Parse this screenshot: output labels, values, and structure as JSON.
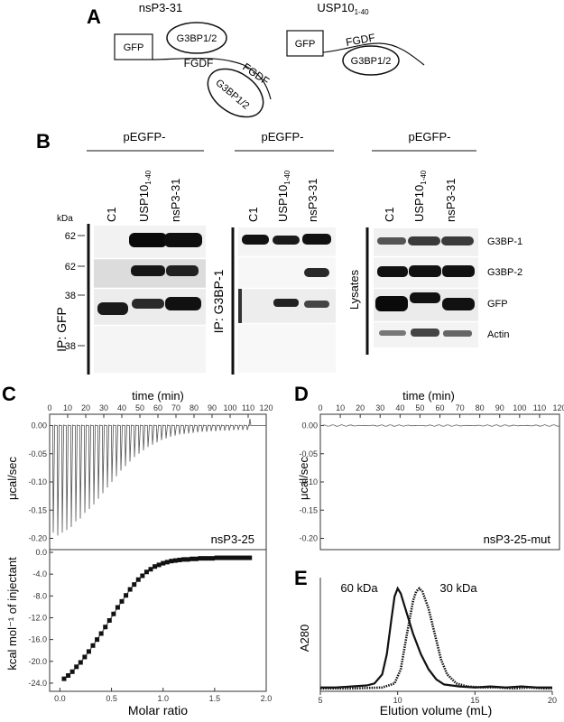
{
  "panels": {
    "A": {
      "letter": "A",
      "diagram_left": {
        "title": "nsP3-31",
        "gfp": "GFP",
        "g3bp_top": "G3BP1/2",
        "g3bp_bottom": "G3BP1/2",
        "motif1": "FGDF",
        "motif2": "FGDF"
      },
      "diagram_right": {
        "title": "USP10",
        "title_sub": "1-40",
        "gfp": "GFP",
        "g3bp": "G3BP1/2",
        "motif": "FGDF"
      }
    },
    "B": {
      "letter": "B",
      "kda": "kDa",
      "groups": [
        {
          "header": "pEGFP-",
          "lanes": [
            "C1",
            "USP10",
            "nsP3-31"
          ]
        },
        {
          "header": "pEGFP-",
          "lanes": [
            "C1",
            "USP10",
            "nsP3-31"
          ]
        },
        {
          "header": "pEGFP-",
          "lanes": [
            "C1",
            "USP10",
            "nsP3-31"
          ]
        }
      ],
      "lane_sub": "1-40",
      "ip_gfp": "IP: GFP",
      "ip_g3bp1": "IP: G3BP-1",
      "lysates": "Lysates",
      "mw_markers": [
        "62",
        "62",
        "38",
        "38"
      ],
      "row_labels": [
        "G3BP-1",
        "G3BP-2",
        "GFP",
        "Actin"
      ]
    },
    "C": {
      "letter": "C",
      "top_xlabel": "time (min)",
      "top_ylabel": "μcal/sec",
      "annotation": "nsP3-25",
      "time_ticks": [
        "0",
        "10",
        "20",
        "30",
        "40",
        "50",
        "60",
        "70",
        "80",
        "90",
        "100",
        "110",
        "120"
      ],
      "y_ticks_top": [
        "0.00",
        "-0.05",
        "-0.10",
        "-0.15",
        "-0.20"
      ],
      "bottom_ylabel": "kcal mol⁻¹ of injectant",
      "bottom_xlabel": "Molar ratio",
      "y_ticks_bottom": [
        "0.0",
        "-4.0",
        "-8.0",
        "-12.0",
        "-16.0",
        "-20.0",
        "-24.0"
      ],
      "x_ticks_bottom": [
        "0.0",
        "0.5",
        "1.0",
        "1.5",
        "2.0"
      ]
    },
    "D": {
      "letter": "D",
      "top_xlabel": "time (min)",
      "top_ylabel": "μcal/sec",
      "annotation": "nsP3-25-mut",
      "time_ticks": [
        "0",
        "10",
        "20",
        "30",
        "40",
        "50",
        "60",
        "70",
        "80",
        "90",
        "100",
        "110",
        "120"
      ],
      "y_ticks_top": [
        "0.00",
        "-0.05",
        "-0.10",
        "-0.15",
        "-0.20"
      ]
    },
    "E": {
      "letter": "E",
      "ylabel": "A280",
      "xlabel": "Elution volume (mL)",
      "peak1": "60 kDa",
      "peak2": "30 kDa",
      "x_ticks": [
        "5",
        "10",
        "15",
        "20"
      ]
    }
  },
  "chart_data": [
    {
      "type": "line",
      "title": "",
      "xlabel": "time (min)",
      "ylabel": "μcal/sec",
      "xlim": [
        0,
        120
      ],
      "ylim": [
        -0.22,
        0.02
      ],
      "injection_peaks": {
        "x": [
          2,
          4.5,
          7,
          9.5,
          12,
          14.5,
          17,
          19.5,
          22,
          24.5,
          27,
          29.5,
          32,
          34.5,
          37,
          39.5,
          42,
          44.5,
          47,
          49.5,
          52,
          54.5,
          57,
          59.5,
          62,
          64.5,
          67,
          69.5,
          72,
          74.5,
          77,
          79.5,
          82,
          84.5,
          87,
          89.5,
          92,
          94.5,
          97,
          99.5,
          102,
          104.5,
          107,
          109.5
        ],
        "y": [
          -0.19,
          -0.195,
          -0.19,
          -0.185,
          -0.18,
          -0.17,
          -0.165,
          -0.155,
          -0.148,
          -0.14,
          -0.13,
          -0.12,
          -0.11,
          -0.1,
          -0.09,
          -0.08,
          -0.072,
          -0.064,
          -0.056,
          -0.05,
          -0.044,
          -0.038,
          -0.034,
          -0.03,
          -0.026,
          -0.023,
          -0.02,
          -0.018,
          -0.016,
          -0.015,
          -0.014,
          -0.013,
          -0.012,
          -0.011,
          -0.011,
          -0.01,
          -0.01,
          -0.009,
          -0.009,
          -0.009,
          -0.008,
          -0.008,
          -0.008,
          -0.008
        ]
      },
      "artifact": {
        "x": 111,
        "y": 0.012
      }
    },
    {
      "type": "scatter",
      "title": "",
      "xlabel": "Molar ratio",
      "ylabel": "kcal mol⁻¹ of injectant",
      "xlim": [
        -0.1,
        2.0
      ],
      "ylim": [
        -25.5,
        0.5
      ],
      "points": {
        "x": [
          0.04,
          0.08,
          0.12,
          0.16,
          0.2,
          0.24,
          0.28,
          0.32,
          0.36,
          0.4,
          0.44,
          0.48,
          0.52,
          0.56,
          0.6,
          0.64,
          0.68,
          0.72,
          0.76,
          0.8,
          0.84,
          0.88,
          0.92,
          0.96,
          1.0,
          1.04,
          1.08,
          1.12,
          1.16,
          1.2,
          1.24,
          1.28,
          1.32,
          1.36,
          1.4,
          1.44,
          1.48,
          1.52,
          1.56,
          1.6,
          1.64,
          1.68,
          1.72,
          1.76,
          1.8,
          1.84
        ],
        "y": [
          -23.2,
          -22.6,
          -21.9,
          -21.0,
          -20.2,
          -19.2,
          -18.2,
          -17.1,
          -16.0,
          -14.9,
          -13.7,
          -12.5,
          -11.3,
          -10.1,
          -9.0,
          -7.9,
          -6.8,
          -5.9,
          -5.0,
          -4.3,
          -3.6,
          -3.1,
          -2.6,
          -2.3,
          -2.0,
          -1.8,
          -1.6,
          -1.5,
          -1.4,
          -1.3,
          -1.3,
          -1.2,
          -1.2,
          -1.1,
          -1.1,
          -1.1,
          -1.1,
          -1.0,
          -1.0,
          -1.0,
          -1.0,
          -1.0,
          -1.0,
          -1.0,
          -1.0,
          -1.0
        ]
      }
    },
    {
      "type": "line",
      "title": "",
      "xlabel": "time (min)",
      "ylabel": "μcal/sec",
      "xlim": [
        0,
        120
      ],
      "ylim": [
        -0.22,
        0.02
      ],
      "baseline": {
        "x": [
          0,
          120
        ],
        "y": [
          0.0,
          0.0
        ]
      }
    },
    {
      "type": "line",
      "title": "",
      "xlabel": "Elution volume (mL)",
      "ylabel": "A280",
      "xlim": [
        5,
        20
      ],
      "series": [
        {
          "x": [
            5,
            6,
            7,
            8,
            8.5,
            9,
            9.3,
            9.6,
            9.8,
            10,
            10.2,
            10.5,
            11,
            11.5,
            12,
            12.5,
            13,
            14,
            15,
            16,
            17,
            18,
            19,
            20
          ],
          "y": [
            0.02,
            0.02,
            0.03,
            0.04,
            0.06,
            0.15,
            0.35,
            0.7,
            0.92,
            1.0,
            0.95,
            0.8,
            0.55,
            0.35,
            0.2,
            0.1,
            0.05,
            0.03,
            0.02,
            0.03,
            0.02,
            0.03,
            0.02,
            0.02
          ]
        },
        {
          "x": [
            5,
            7,
            9,
            9.8,
            10.2,
            10.6,
            11,
            11.2,
            11.4,
            11.6,
            12,
            12.4,
            12.8,
            13.2,
            13.8,
            14.5,
            15.5,
            16.5,
            17.5,
            18.5,
            19.5,
            20
          ],
          "y": [
            0.01,
            0.01,
            0.02,
            0.06,
            0.2,
            0.55,
            0.88,
            0.97,
            1.0,
            0.97,
            0.8,
            0.55,
            0.3,
            0.15,
            0.06,
            0.03,
            0.02,
            0.02,
            0.01,
            0.02,
            0.01,
            0.01
          ]
        }
      ]
    }
  ]
}
